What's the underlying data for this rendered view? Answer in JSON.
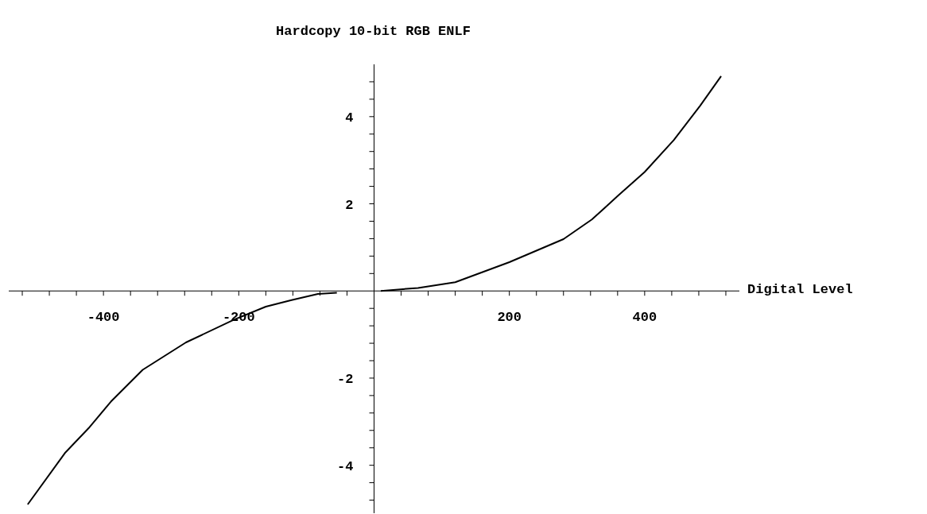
{
  "chart_data": {
    "type": "line",
    "title": "Hardcopy 10-bit RGB ENLF",
    "xlabel": "Digital Level",
    "x": [
      -512,
      -457,
      -422,
      -389,
      -342,
      -278,
      -207,
      -160,
      -122,
      -83,
      -55,
      0,
      10,
      65,
      120,
      200,
      280,
      322,
      361,
      400,
      443,
      482,
      513
    ],
    "series": [
      {
        "color": "#000000",
        "values": [
          -4.9,
          -3.72,
          -3.15,
          -2.54,
          -1.81,
          -1.18,
          -0.66,
          -0.36,
          -0.21,
          -0.07,
          -0.04,
          null,
          0,
          0.07,
          0.2,
          0.66,
          1.19,
          1.64,
          2.19,
          2.73,
          3.46,
          4.25,
          4.93
        ]
      }
    ],
    "xlim": [
      -540,
      540
    ],
    "ylim": [
      -5.1,
      5.2
    ],
    "xticks": [
      {
        "value": -520,
        "label": null
      },
      {
        "value": -480,
        "label": null
      },
      {
        "value": -440,
        "label": null
      },
      -400,
      {
        "value": -360,
        "label": null
      },
      {
        "value": -320,
        "label": null
      },
      {
        "value": -280,
        "label": null
      },
      {
        "value": -240,
        "label": null
      },
      -200,
      {
        "value": -160,
        "label": null
      },
      {
        "value": -120,
        "label": null
      },
      {
        "value": -80,
        "label": null
      },
      {
        "value": -40,
        "label": null
      },
      {
        "value": 40,
        "label": null
      },
      {
        "value": 80,
        "label": null
      },
      {
        "value": 120,
        "label": null
      },
      {
        "value": 160,
        "label": null
      },
      200,
      {
        "value": 240,
        "label": null
      },
      {
        "value": 280,
        "label": null
      },
      {
        "value": 320,
        "label": null
      },
      {
        "value": 360,
        "label": null
      },
      400,
      {
        "value": 440,
        "label": null
      },
      {
        "value": 480,
        "label": null
      },
      {
        "value": 520,
        "label": null
      }
    ],
    "yticks": [
      {
        "value": -4.8,
        "label": null
      },
      {
        "value": -4.4,
        "label": null
      },
      -4,
      {
        "value": -3.6,
        "label": null
      },
      {
        "value": -3.2,
        "label": null
      },
      {
        "value": -2.8,
        "label": null
      },
      {
        "value": -2.4,
        "label": null
      },
      -2,
      {
        "value": -1.6,
        "label": null
      },
      {
        "value": -1.2,
        "label": null
      },
      {
        "value": -0.8,
        "label": null
      },
      {
        "value": -0.4,
        "label": null
      },
      {
        "value": 0.4,
        "label": null
      },
      {
        "value": 0.8,
        "label": null
      },
      {
        "value": 1.2,
        "label": null
      },
      {
        "value": 1.6,
        "label": null
      },
      2,
      {
        "value": 2.4,
        "label": null
      },
      {
        "value": 2.8,
        "label": null
      },
      {
        "value": 3.2,
        "label": null
      },
      {
        "value": 3.6,
        "label": null
      },
      4,
      {
        "value": 4.4,
        "label": null
      },
      {
        "value": 4.8,
        "label": null
      }
    ],
    "grid": false,
    "legend": false,
    "marker": "none",
    "line_style": "solid"
  }
}
